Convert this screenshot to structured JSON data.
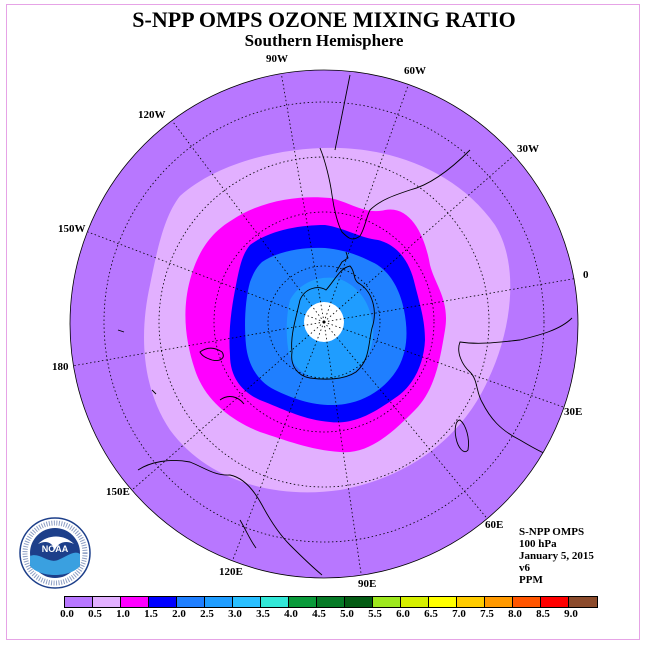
{
  "title": "S-NPP OMPS OZONE MIXING RATIO",
  "subtitle": "Southern Hemisphere",
  "longitude_labels": [
    {
      "name": "lon-90w",
      "text": "90W"
    },
    {
      "name": "lon-60w",
      "text": "60W"
    },
    {
      "name": "lon-30w",
      "text": "30W"
    },
    {
      "name": "lon-0",
      "text": "0"
    },
    {
      "name": "lon-30e",
      "text": "30E"
    },
    {
      "name": "lon-60e",
      "text": "60E"
    },
    {
      "name": "lon-90e",
      "text": "90E"
    },
    {
      "name": "lon-120e",
      "text": "120E"
    },
    {
      "name": "lon-150e",
      "text": "150E"
    },
    {
      "name": "lon-180",
      "text": "180"
    },
    {
      "name": "lon-150w",
      "text": "150W"
    },
    {
      "name": "lon-120w",
      "text": "120W"
    }
  ],
  "info": {
    "instrument": "S-NPP OMPS",
    "level": "100 hPa",
    "date": "January 5, 2015",
    "version": "v6",
    "units": "PPM"
  },
  "logo": {
    "text": "NOAA"
  },
  "colorbar": {
    "colors": [
      "#b877ff",
      "#e2b0ff",
      "#ff00ff",
      "#0000ff",
      "#1f7fff",
      "#1f9dff",
      "#29bfff",
      "#33e8d8",
      "#0a9a3a",
      "#067a26",
      "#045c14",
      "#9ee81e",
      "#d6f000",
      "#ffff00",
      "#ffcc00",
      "#ff9900",
      "#ff5500",
      "#ff0000",
      "#8b4a2b"
    ],
    "ticks": [
      "0.0",
      "0.5",
      "1.0",
      "1.5",
      "2.0",
      "2.5",
      "3.0",
      "3.5",
      "4.0",
      "4.5",
      "5.0",
      "5.5",
      "6.0",
      "6.5",
      "7.0",
      "7.5",
      "8.0",
      "8.5",
      "9.0"
    ]
  },
  "map_colors": {
    "band_0_0": "#b877ff",
    "band_0_5": "#e2b0ff",
    "band_1_0": "#ff00ff",
    "band_1_5": "#0000ff",
    "band_2_0": "#1f7fff",
    "band_2_5": "#1f9dff",
    "pole_missing": "#ffffff"
  }
}
